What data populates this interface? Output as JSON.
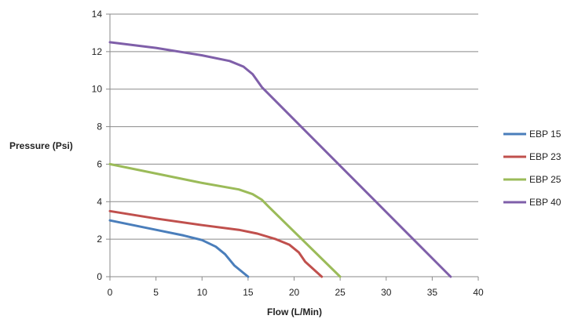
{
  "chart_data": {
    "type": "line",
    "title": "",
    "xlabel": "Flow (L/Min)",
    "ylabel": "Pressure (Psi)",
    "xlim": [
      0,
      40
    ],
    "ylim": [
      0,
      14
    ],
    "x_ticks": [
      0,
      5,
      10,
      15,
      20,
      25,
      30,
      35,
      40
    ],
    "y_ticks": [
      0,
      2,
      4,
      6,
      8,
      10,
      12,
      14
    ],
    "grid": "horizontal",
    "legend_position": "right",
    "series": [
      {
        "name": "EBP 15",
        "color": "#4a7ebb",
        "points": [
          [
            0,
            3
          ],
          [
            5,
            2.5
          ],
          [
            8,
            2.2
          ],
          [
            10,
            1.95
          ],
          [
            11.5,
            1.6
          ],
          [
            12.5,
            1.2
          ],
          [
            13.5,
            0.6
          ],
          [
            15,
            0
          ]
        ]
      },
      {
        "name": "EBP 23",
        "color": "#c0504d",
        "points": [
          [
            0,
            3.5
          ],
          [
            5,
            3.1
          ],
          [
            10,
            2.75
          ],
          [
            14,
            2.5
          ],
          [
            16,
            2.3
          ],
          [
            18,
            2.0
          ],
          [
            19.5,
            1.7
          ],
          [
            20.5,
            1.3
          ],
          [
            21.2,
            0.8
          ],
          [
            23,
            0
          ]
        ]
      },
      {
        "name": "EBP 25",
        "color": "#9bbb59",
        "points": [
          [
            0,
            6
          ],
          [
            5,
            5.5
          ],
          [
            10,
            5.0
          ],
          [
            14,
            4.65
          ],
          [
            15.5,
            4.4
          ],
          [
            16.5,
            4.1
          ],
          [
            17.2,
            3.75
          ],
          [
            25,
            0
          ]
        ]
      },
      {
        "name": "EBP 40",
        "color": "#7f5fa9",
        "points": [
          [
            0,
            12.5
          ],
          [
            5,
            12.2
          ],
          [
            10,
            11.8
          ],
          [
            13,
            11.5
          ],
          [
            14.5,
            11.2
          ],
          [
            15.5,
            10.8
          ],
          [
            16.5,
            10.1
          ],
          [
            37,
            0
          ]
        ]
      }
    ]
  }
}
